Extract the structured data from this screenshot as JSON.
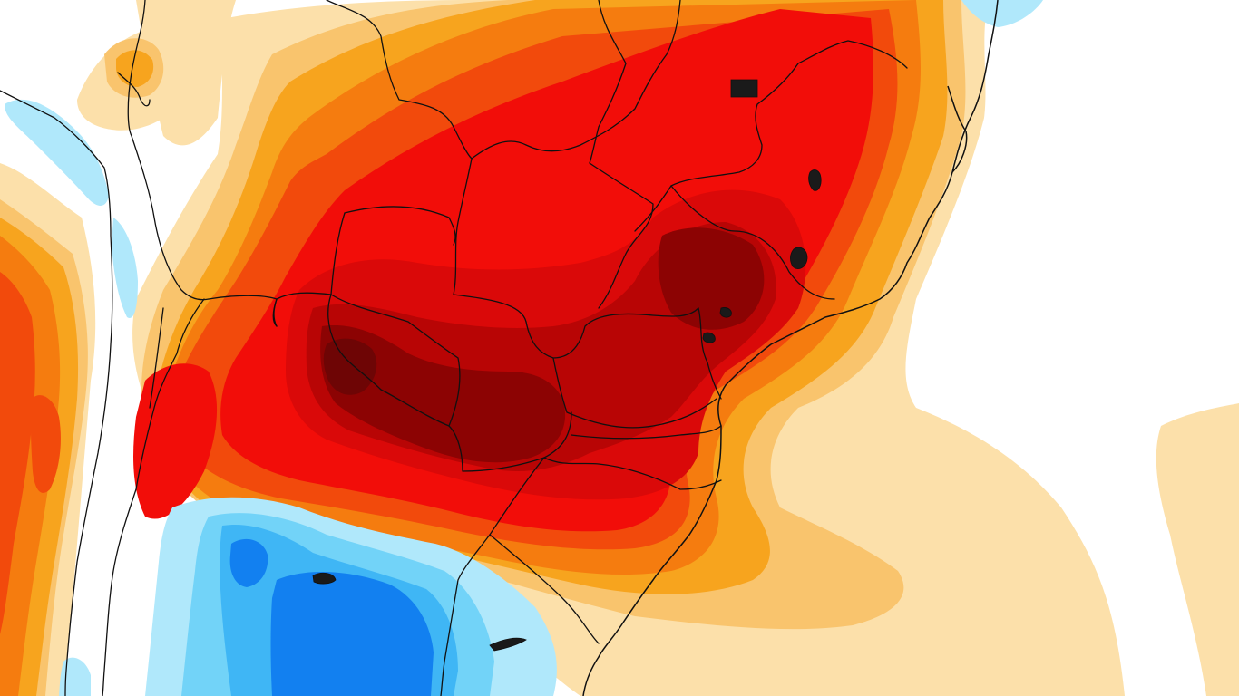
{
  "map": {
    "title": "",
    "legend": [],
    "palette": {
      "anomaly_pos_1": "#FCE0AA",
      "anomaly_pos_2": "#F9C46D",
      "anomaly_pos_3": "#F7A41E",
      "anomaly_pos_4": "#F57C0F",
      "anomaly_pos_5": "#F24A0C",
      "anomaly_pos_6": "#F20D09",
      "anomaly_pos_7": "#DA0909",
      "anomaly_pos_8": "#B80505",
      "anomaly_pos_9": "#8C0303",
      "anomaly_pos_10": "#6E0505",
      "anomaly_neg_1": "#B0E8FB",
      "anomaly_neg_2": "#72D3F8",
      "anomaly_neg_3": "#3FB6F5",
      "anomaly_neg_4": "#1280F0",
      "anomaly_neg_5": "#0A5CE6",
      "background": "#FFFFFF",
      "border": "#111111"
    },
    "layers": [
      "temperature-anomaly-contours",
      "country-borders",
      "state-borders",
      "coastline",
      "lakes"
    ]
  }
}
